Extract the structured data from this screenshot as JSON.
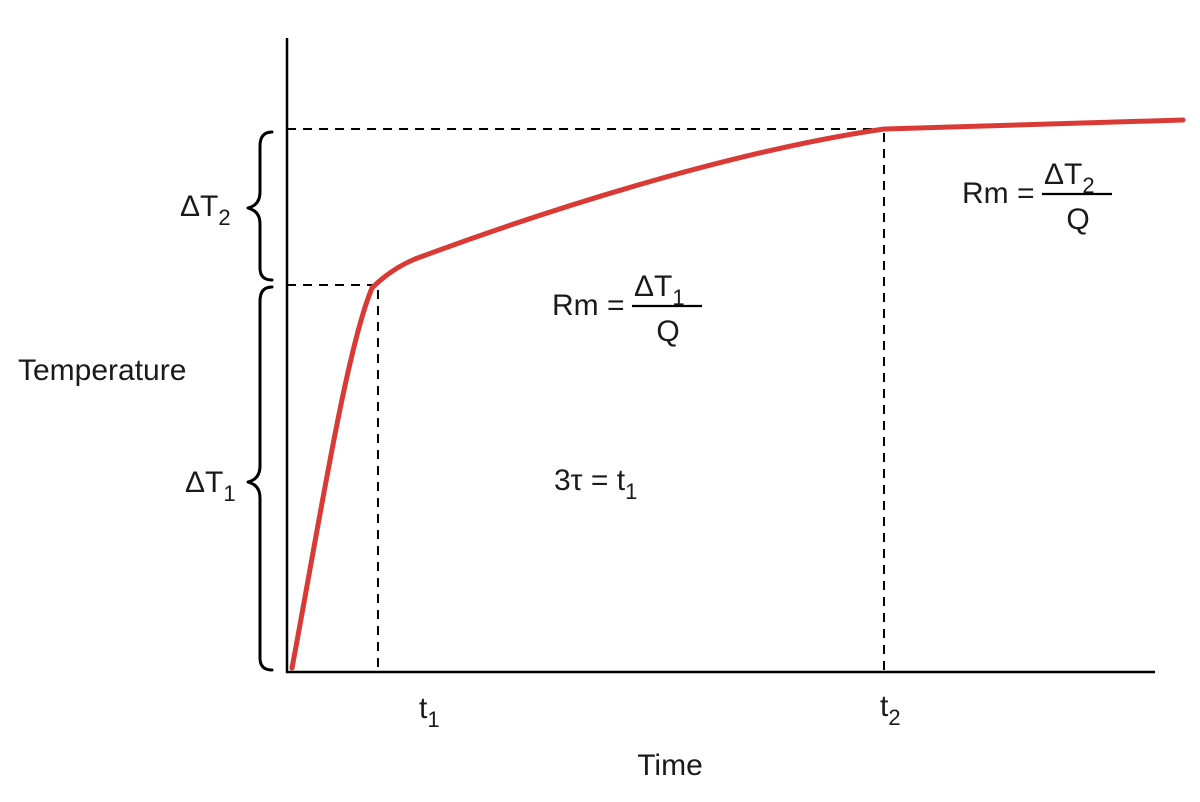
{
  "axes": {
    "y_label": "Temperature",
    "x_label": "Time"
  },
  "ticks": {
    "t1": {
      "base": "t",
      "sub": "1"
    },
    "t2": {
      "base": "t",
      "sub": "2"
    }
  },
  "braces": {
    "delta_t1": {
      "base": "ΔT",
      "sub": "1"
    },
    "delta_t2": {
      "base": "ΔT",
      "sub": "2"
    }
  },
  "equations": {
    "rm1": {
      "lhs": "Rm =",
      "num_base": "ΔT",
      "num_sub": "1",
      "den": "Q"
    },
    "rm2": {
      "lhs": "Rm =",
      "num_base": "ΔT",
      "num_sub": "2",
      "den": "Q"
    },
    "tau": {
      "base": "3τ = t",
      "sub": "1"
    }
  },
  "colors": {
    "curve": "#d93a35",
    "axis": "#000000",
    "text": "#1a1a1a"
  }
}
